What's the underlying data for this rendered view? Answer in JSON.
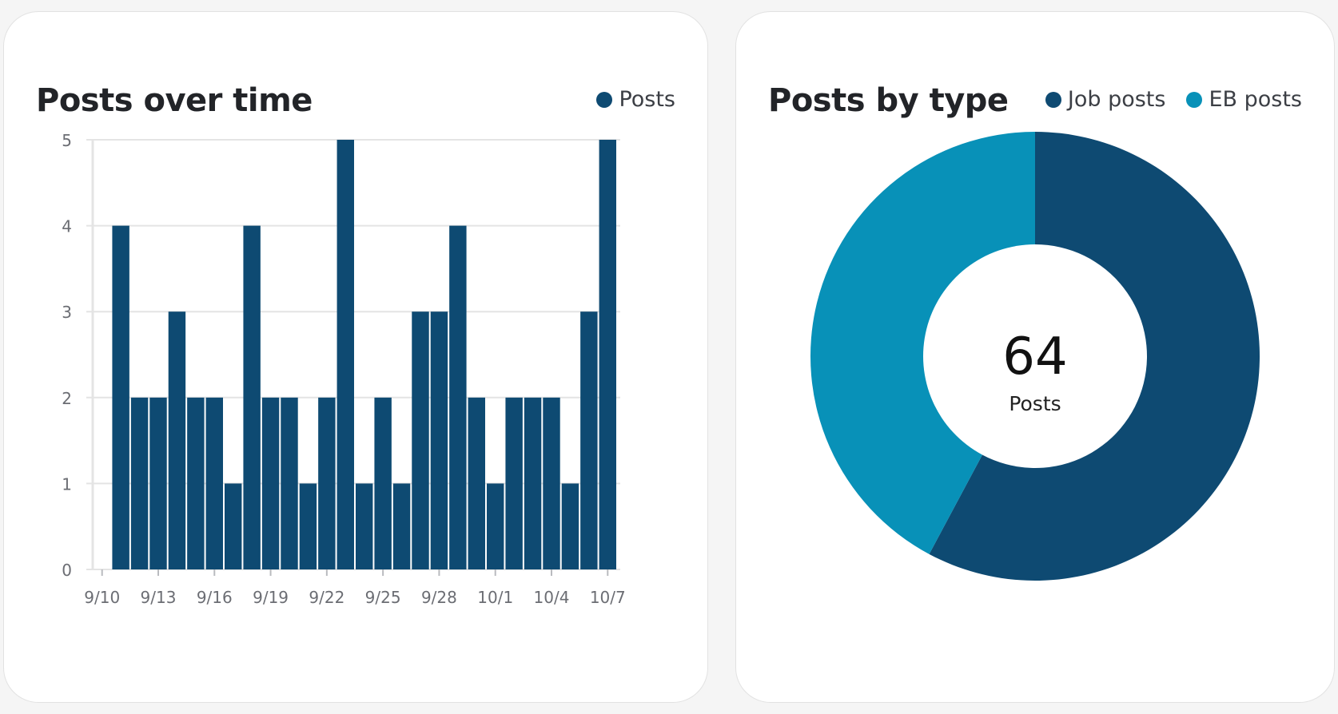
{
  "colors": {
    "job": "#0e4a72",
    "eb": "#0891b8",
    "grid": "#e4e4e4",
    "axis_text": "#6b6d73"
  },
  "cards": {
    "time": {
      "title": "Posts over time",
      "legend": [
        {
          "label": "Posts",
          "color": "#0e4a72"
        }
      ]
    },
    "type": {
      "title": "Posts by type",
      "legend": [
        {
          "label": "Job posts",
          "color": "#0e4a72"
        },
        {
          "label": "EB posts",
          "color": "#0891b8"
        }
      ]
    }
  },
  "chart_data": [
    {
      "type": "bar",
      "title": "Posts over time",
      "series": [
        {
          "name": "Posts",
          "values": [
            0,
            4,
            2,
            2,
            3,
            2,
            2,
            1,
            4,
            2,
            2,
            1,
            2,
            5,
            1,
            2,
            1,
            3,
            3,
            4,
            2,
            1,
            2,
            2,
            2,
            1,
            3,
            5
          ]
        }
      ],
      "categories": [
        "9/10",
        "9/11",
        "9/12",
        "9/13",
        "9/14",
        "9/15",
        "9/16",
        "9/17",
        "9/18",
        "9/19",
        "9/20",
        "9/21",
        "9/22",
        "9/23",
        "9/24",
        "9/25",
        "9/26",
        "9/27",
        "9/28",
        "9/29",
        "9/30",
        "10/1",
        "10/2",
        "10/3",
        "10/4",
        "10/5",
        "10/6",
        "10/7"
      ],
      "x_tick_labels": [
        "9/10",
        "9/13",
        "9/16",
        "9/19",
        "9/22",
        "9/25",
        "9/28",
        "10/1",
        "10/4",
        "10/7"
      ],
      "y_ticks": [
        "0",
        "1",
        "2",
        "3",
        "4",
        "5"
      ],
      "ylim": [
        0,
        5
      ],
      "xlabel": "",
      "ylabel": "",
      "grid": true,
      "legend": "top-right"
    },
    {
      "type": "pie",
      "title": "Posts by type",
      "labels": [
        "Job posts",
        "EB posts"
      ],
      "values": [
        37,
        27
      ],
      "total": "64",
      "center_label": "Posts",
      "legend": "top-right"
    }
  ]
}
